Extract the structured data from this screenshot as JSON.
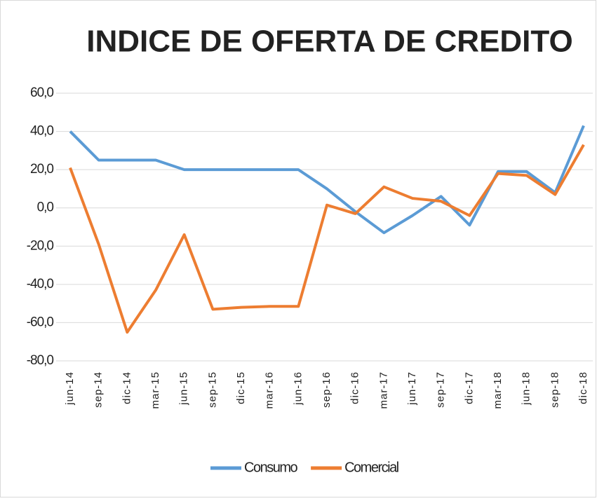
{
  "chart_data": {
    "type": "line",
    "title": "INDICE DE OFERTA DE CREDITO",
    "categories": [
      "jun-14",
      "sep-14",
      "dic-14",
      "mar-15",
      "jun-15",
      "sep-15",
      "dic-15",
      "mar-16",
      "jun-16",
      "sep-16",
      "dic-16",
      "mar-17",
      "jun-17",
      "sep-17",
      "dic-17",
      "mar-18",
      "jun-18",
      "sep-18",
      "dic-18"
    ],
    "series": [
      {
        "name": "Consumo",
        "color": "#5b9bd5",
        "values": [
          40,
          25,
          25,
          25,
          20,
          20,
          20,
          20,
          20,
          10,
          -2,
          -13,
          -4,
          6,
          -9,
          19,
          19,
          8,
          43
        ]
      },
      {
        "name": "Comercial",
        "color": "#ed7d31",
        "values": [
          21,
          -19,
          -65,
          -43,
          -14,
          -53,
          -52,
          -51.5,
          -51.5,
          1.5,
          -3,
          11,
          5,
          3.5,
          -4,
          18,
          17,
          7,
          33
        ]
      }
    ],
    "ylim": [
      -80,
      60
    ],
    "yticks": [
      {
        "value": -80,
        "label": "-80,0"
      },
      {
        "value": -60,
        "label": "-60,0"
      },
      {
        "value": -40,
        "label": "-40,0"
      },
      {
        "value": -20,
        "label": "-20,0"
      },
      {
        "value": 0,
        "label": "0,0"
      },
      {
        "value": 20,
        "label": "20,0"
      },
      {
        "value": 40,
        "label": "40,0"
      },
      {
        "value": 60,
        "label": "60,0"
      }
    ],
    "grid": true,
    "legend": "bottom"
  }
}
